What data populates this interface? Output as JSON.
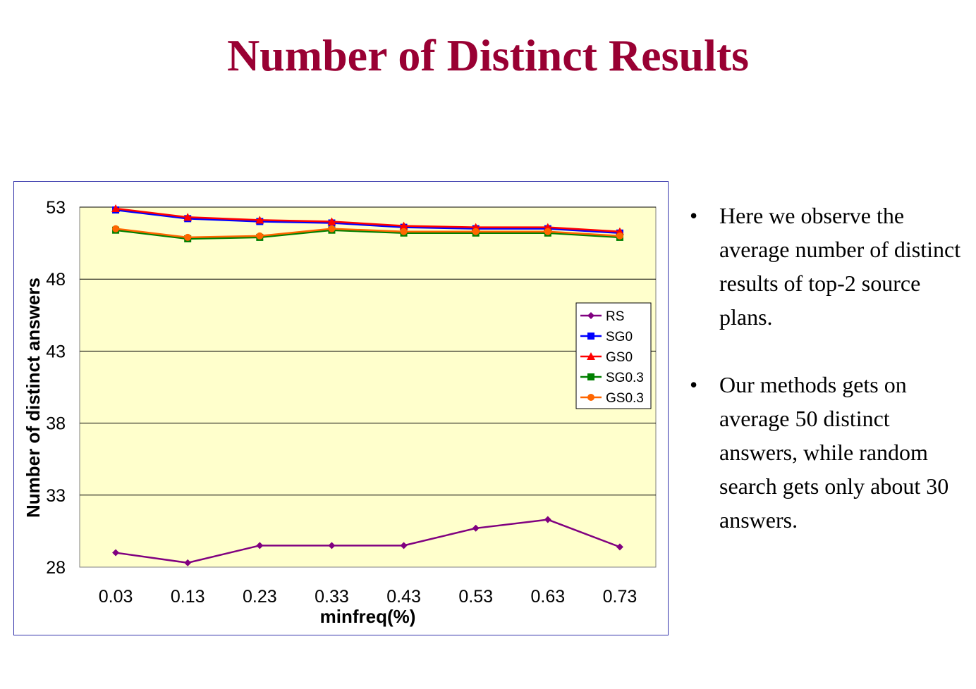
{
  "title": "Number of Distinct Results",
  "bullets": [
    "Here we observe the average number of distinct results of top-2 source plans.",
    "Our methods gets on average 50 distinct answers, while random search gets only about 30 answers."
  ],
  "colors": {
    "title": "#990033",
    "plot_background": "#ffffcc",
    "RS": "#800080",
    "SG0": "#0000ff",
    "GS0": "#ff0000",
    "SG0.3": "#008000",
    "GS0.3": "#ff6600"
  },
  "chart_data": {
    "type": "line",
    "title": "",
    "xlabel": "minfreq(%)",
    "ylabel": "Number of distinct answers",
    "categories": [
      "0.03",
      "0.13",
      "0.23",
      "0.33",
      "0.43",
      "0.53",
      "0.63",
      "0.73"
    ],
    "ylim": [
      28,
      53
    ],
    "yticks": [
      "28",
      "33",
      "38",
      "43",
      "48",
      "53"
    ],
    "grid": "horizontal",
    "legend_position": "right",
    "series": [
      {
        "name": "RS",
        "marker": "diamond",
        "values": [
          29.0,
          28.3,
          29.5,
          29.5,
          29.5,
          30.7,
          31.3,
          29.4
        ]
      },
      {
        "name": "SG0",
        "marker": "square",
        "values": [
          52.8,
          52.2,
          52.0,
          51.9,
          51.6,
          51.5,
          51.5,
          51.2
        ]
      },
      {
        "name": "GS0",
        "marker": "triangle",
        "values": [
          52.9,
          52.3,
          52.1,
          52.0,
          51.7,
          51.6,
          51.6,
          51.3
        ]
      },
      {
        "name": "SG0.3",
        "marker": "square",
        "values": [
          51.4,
          50.8,
          50.9,
          51.4,
          51.2,
          51.2,
          51.2,
          50.9
        ]
      },
      {
        "name": "GS0.3",
        "marker": "circle",
        "values": [
          51.5,
          50.9,
          51.0,
          51.5,
          51.3,
          51.3,
          51.3,
          51.0
        ]
      }
    ]
  }
}
